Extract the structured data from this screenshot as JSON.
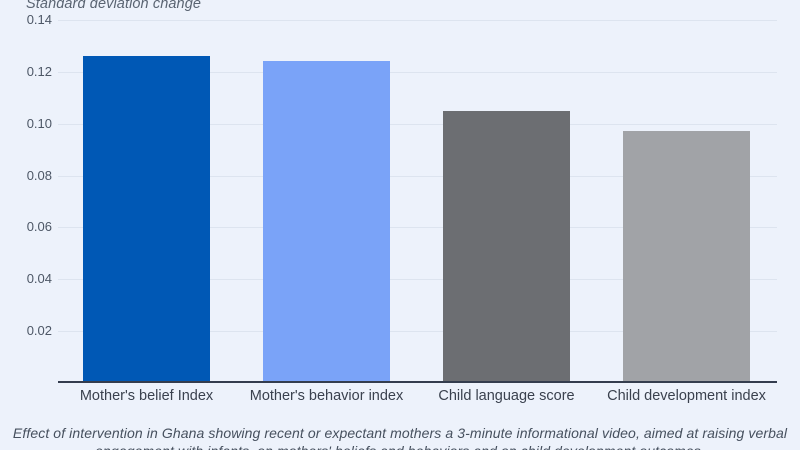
{
  "chart_data": {
    "type": "bar",
    "title": "",
    "axis_title": "Standard deviation change",
    "categories": [
      "Mother's belief Index",
      "Mother's behavior index",
      "Child language score",
      "Child development index"
    ],
    "values": [
      0.126,
      0.124,
      0.105,
      0.097
    ],
    "bar_colors": [
      "#0058b5",
      "#7aa3f8",
      "#6c6e72",
      "#a1a3a7"
    ],
    "xlabel": "",
    "ylabel": "Standard deviation change",
    "ylim": [
      0,
      0.14
    ],
    "yticks": [
      0.02,
      0.04,
      0.06,
      0.08,
      0.1,
      0.12,
      0.14
    ],
    "grid": true,
    "legend": false
  },
  "caption": {
    "line1": "Effect of intervention in Ghana showing recent or expectant mothers a 3-minute informational video, aimed at raising verbal",
    "line2": "engagement with infants, on mothers' beliefs and behaviors and on child development outcomes."
  },
  "colors": {
    "background": "#edf2fb",
    "gridline": "#dde4ef",
    "axis_line": "#343d4e",
    "tick_label": "#4d5766",
    "category_label": "#3a414e",
    "axis_title": "#5a6472",
    "caption": "#46505e"
  }
}
